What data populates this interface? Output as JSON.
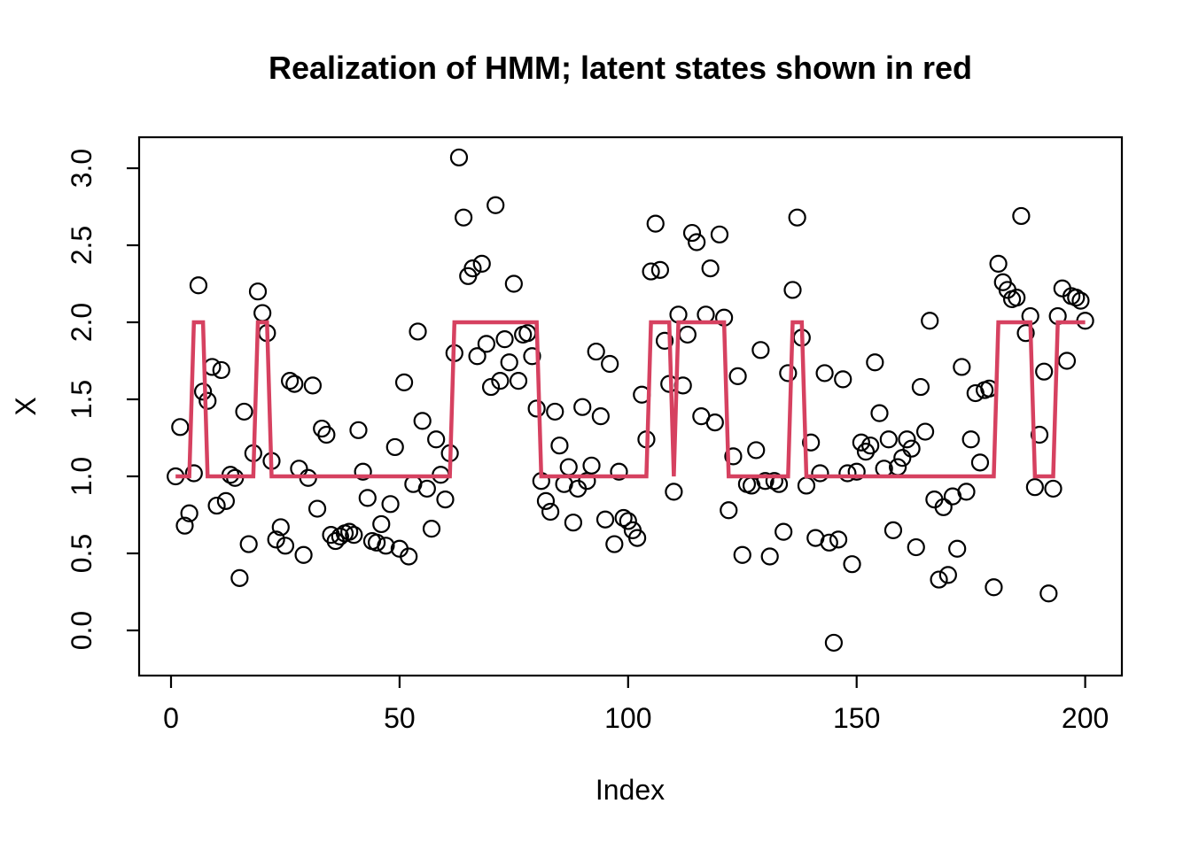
{
  "page": {
    "background": "#ffffff"
  },
  "chart_data": {
    "type": "scatter",
    "title": "Realization of HMM; latent states shown in red",
    "xlabel": "Index",
    "ylabel": "X",
    "x_ticks": [
      "0",
      "50",
      "100",
      "150",
      "200"
    ],
    "x_tick_values": [
      0,
      50,
      100,
      150,
      200
    ],
    "y_ticks": [
      "0.0",
      "0.5",
      "1.0",
      "1.5",
      "2.0",
      "2.5",
      "3.0"
    ],
    "y_tick_values": [
      0.0,
      0.5,
      1.0,
      1.5,
      2.0,
      2.5,
      3.0
    ],
    "xlim": [
      -7,
      208
    ],
    "ylim": [
      -0.29,
      3.2
    ],
    "grid": false,
    "legend_position": "none",
    "point_color": "#000000",
    "line_color": "#d64160",
    "frame_color": "#000000",
    "x_start": 1,
    "n": 200,
    "observations": [
      1.0,
      1.32,
      0.68,
      0.76,
      1.02,
      2.24,
      1.55,
      1.49,
      1.71,
      0.81,
      1.69,
      0.84,
      1.01,
      0.99,
      0.34,
      1.42,
      0.56,
      1.15,
      2.2,
      2.06,
      1.93,
      1.1,
      0.59,
      0.67,
      0.55,
      1.62,
      1.6,
      1.05,
      0.49,
      0.99,
      1.59,
      0.79,
      1.31,
      1.27,
      0.62,
      0.58,
      0.61,
      0.63,
      0.64,
      0.62,
      1.3,
      1.03,
      0.86,
      0.58,
      0.57,
      0.69,
      0.55,
      0.82,
      1.19,
      0.53,
      1.61,
      0.48,
      0.95,
      1.94,
      1.36,
      0.92,
      0.66,
      1.24,
      1.01,
      0.85,
      1.15,
      1.8,
      3.07,
      2.68,
      2.3,
      2.35,
      1.78,
      2.38,
      1.86,
      1.58,
      2.76,
      1.62,
      1.89,
      1.74,
      2.25,
      1.62,
      1.92,
      1.93,
      1.78,
      1.44,
      0.97,
      0.84,
      0.77,
      1.42,
      1.2,
      0.95,
      1.06,
      0.7,
      0.92,
      1.45,
      0.97,
      1.07,
      1.81,
      1.39,
      0.72,
      1.73,
      0.56,
      1.03,
      0.73,
      0.71,
      0.65,
      0.6,
      1.53,
      1.24,
      2.33,
      2.64,
      2.34,
      1.88,
      1.6,
      0.9,
      2.05,
      1.59,
      1.92,
      2.58,
      2.52,
      1.39,
      2.05,
      2.35,
      1.35,
      2.57,
      2.03,
      0.78,
      1.13,
      1.65,
      0.49,
      0.95,
      0.94,
      1.17,
      1.82,
      0.97,
      0.48,
      0.97,
      0.95,
      0.64,
      1.67,
      2.21,
      2.68,
      1.9,
      0.94,
      1.22,
      0.6,
      1.02,
      1.67,
      0.57,
      -0.08,
      0.59,
      1.63,
      1.02,
      0.43,
      1.03,
      1.22,
      1.16,
      1.2,
      1.74,
      1.41,
      1.05,
      1.24,
      0.65,
      1.06,
      1.12,
      1.24,
      1.18,
      0.54,
      1.58,
      1.29,
      2.01,
      0.85,
      0.33,
      0.8,
      0.36,
      0.87,
      0.53,
      1.71,
      0.9,
      1.24,
      1.54,
      1.09,
      1.56,
      1.57,
      0.28,
      2.38,
      2.26,
      2.21,
      2.15,
      2.16,
      2.69,
      1.93,
      2.04,
      0.93,
      1.27,
      1.68,
      0.24,
      0.92,
      2.04,
      2.22,
      1.75,
      2.17,
      2.16,
      2.14,
      2.01
    ],
    "latent_state_runs": [
      {
        "from": 1,
        "to": 4,
        "state": 1
      },
      {
        "from": 5,
        "to": 7,
        "state": 2
      },
      {
        "from": 8,
        "to": 18,
        "state": 1
      },
      {
        "from": 19,
        "to": 21,
        "state": 2
      },
      {
        "from": 22,
        "to": 61,
        "state": 1
      },
      {
        "from": 62,
        "to": 80,
        "state": 2
      },
      {
        "from": 81,
        "to": 104,
        "state": 1
      },
      {
        "from": 105,
        "to": 109,
        "state": 2
      },
      {
        "from": 110,
        "to": 110,
        "state": 1
      },
      {
        "from": 111,
        "to": 121,
        "state": 2
      },
      {
        "from": 122,
        "to": 135,
        "state": 1
      },
      {
        "from": 136,
        "to": 138,
        "state": 2
      },
      {
        "from": 139,
        "to": 180,
        "state": 1
      },
      {
        "from": 181,
        "to": 188,
        "state": 2
      },
      {
        "from": 189,
        "to": 193,
        "state": 1
      },
      {
        "from": 194,
        "to": 200,
        "state": 2
      }
    ]
  }
}
